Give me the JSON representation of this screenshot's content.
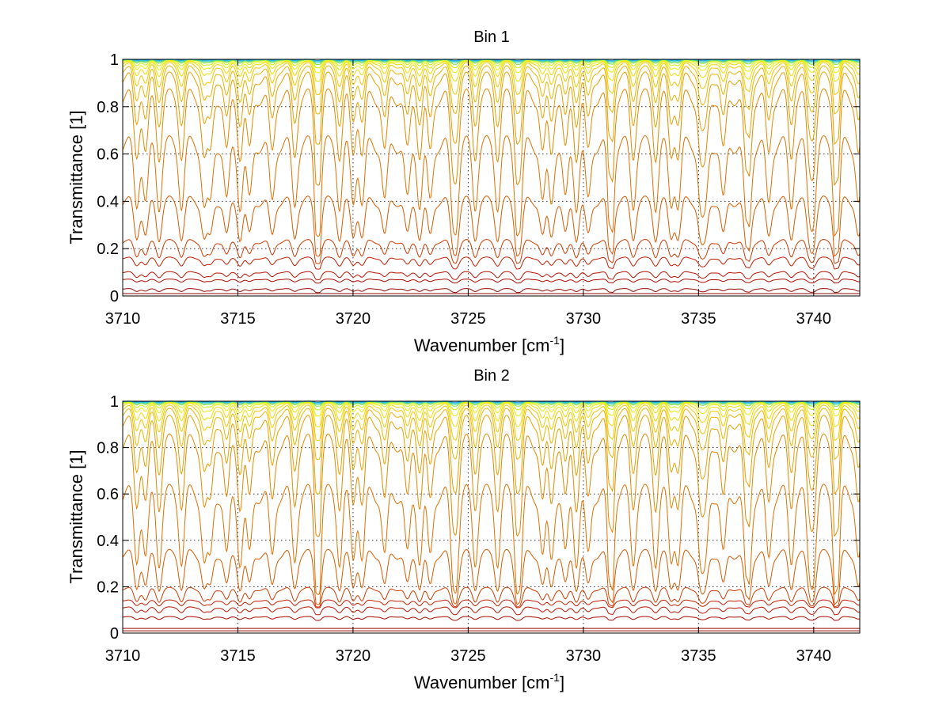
{
  "chart_data": [
    {
      "type": "line",
      "title": "Bin 1",
      "xlabel": "Wavenumber [cm",
      "xlabel_sup": "-1",
      "xlabel_end": "]",
      "ylabel": "Transmittance [1]",
      "xlim": [
        3710,
        3742
      ],
      "ylim": [
        0,
        1
      ],
      "x_ticks": [
        3710,
        3715,
        3720,
        3725,
        3730,
        3735,
        3740
      ],
      "y_ticks": [
        0,
        0.2,
        0.4,
        0.6,
        0.8,
        1
      ],
      "y_tick_labels": [
        "0",
        "0.2",
        "0.4",
        "0.6",
        "0.8",
        "1"
      ],
      "grid": true,
      "series": [
        {
          "color": "#7f0000",
          "baseline": 0.0,
          "depth": 0.0
        },
        {
          "color": "#8f0400",
          "baseline": 0.01,
          "depth": 0.0
        },
        {
          "color": "#9a0800",
          "baseline": 0.03,
          "depth": 0.01
        },
        {
          "color": "#a80c00",
          "baseline": 0.07,
          "depth": 0.01
        },
        {
          "color": "#b81400",
          "baseline": 0.1,
          "depth": 0.02
        },
        {
          "color": "#c41e00",
          "baseline": 0.16,
          "depth": 0.03
        },
        {
          "color": "#d03a00",
          "baseline": 0.23,
          "depth": 0.06
        },
        {
          "color": "#d85a00",
          "baseline": 0.4,
          "depth": 0.15
        },
        {
          "color": "#e07000",
          "baseline": 0.64,
          "depth": 0.25
        },
        {
          "color": "#e48800",
          "baseline": 0.84,
          "depth": 0.24
        },
        {
          "color": "#e8a000",
          "baseline": 0.92,
          "depth": 0.18
        },
        {
          "color": "#ecb400",
          "baseline": 0.955,
          "depth": 0.12
        },
        {
          "color": "#f0c800",
          "baseline": 0.975,
          "depth": 0.08
        },
        {
          "color": "#f0dc00",
          "baseline": 0.985,
          "depth": 0.05
        },
        {
          "color": "#e8ec00",
          "baseline": 0.99,
          "depth": 0.03
        },
        {
          "color": "#c8f000",
          "baseline": 0.995,
          "depth": 0.02
        },
        {
          "color": "#80e040",
          "baseline": 0.997,
          "depth": 0.012
        },
        {
          "color": "#40d0a0",
          "baseline": 0.998,
          "depth": 0.008
        },
        {
          "color": "#20c0e0",
          "baseline": 0.999,
          "depth": 0.005
        },
        {
          "color": "#1090d0",
          "baseline": 1.0,
          "depth": 0.003
        }
      ]
    },
    {
      "type": "line",
      "title": "Bin 2",
      "xlabel": "Wavenumber [cm",
      "xlabel_sup": "-1",
      "xlabel_end": "]",
      "ylabel": "Transmittance [1]",
      "xlim": [
        3710,
        3742
      ],
      "ylim": [
        0,
        1
      ],
      "x_ticks": [
        3710,
        3715,
        3720,
        3725,
        3730,
        3735,
        3740
      ],
      "y_ticks": [
        0,
        0.2,
        0.4,
        0.6,
        0.8,
        1
      ],
      "y_tick_labels": [
        "0",
        "0.2",
        "0.4",
        "0.6",
        "0.8",
        "1"
      ],
      "grid": true,
      "series": [
        {
          "color": "#7f0000",
          "baseline": 0.0,
          "depth": 0.0
        },
        {
          "color": "#8f0400",
          "baseline": 0.01,
          "depth": 0.0
        },
        {
          "color": "#9a0800",
          "baseline": 0.02,
          "depth": 0.0
        },
        {
          "color": "#a80c00",
          "baseline": 0.07,
          "depth": 0.01
        },
        {
          "color": "#b81400",
          "baseline": 0.11,
          "depth": 0.02
        },
        {
          "color": "#c41e00",
          "baseline": 0.14,
          "depth": 0.02
        },
        {
          "color": "#d03a00",
          "baseline": 0.19,
          "depth": 0.05
        },
        {
          "color": "#d85a00",
          "baseline": 0.34,
          "depth": 0.14
        },
        {
          "color": "#e07000",
          "baseline": 0.6,
          "depth": 0.28
        },
        {
          "color": "#e48800",
          "baseline": 0.82,
          "depth": 0.26
        },
        {
          "color": "#e8a000",
          "baseline": 0.91,
          "depth": 0.2
        },
        {
          "color": "#ecb400",
          "baseline": 0.95,
          "depth": 0.13
        },
        {
          "color": "#f0c800",
          "baseline": 0.97,
          "depth": 0.09
        },
        {
          "color": "#f0dc00",
          "baseline": 0.983,
          "depth": 0.06
        },
        {
          "color": "#e8ec00",
          "baseline": 0.99,
          "depth": 0.035
        },
        {
          "color": "#c8f000",
          "baseline": 0.994,
          "depth": 0.02
        },
        {
          "color": "#80e040",
          "baseline": 0.997,
          "depth": 0.012
        },
        {
          "color": "#40d0a0",
          "baseline": 0.998,
          "depth": 0.008
        },
        {
          "color": "#20c0e0",
          "baseline": 0.999,
          "depth": 0.005
        },
        {
          "color": "#1090d0",
          "baseline": 1.0,
          "depth": 0.003
        }
      ]
    }
  ]
}
